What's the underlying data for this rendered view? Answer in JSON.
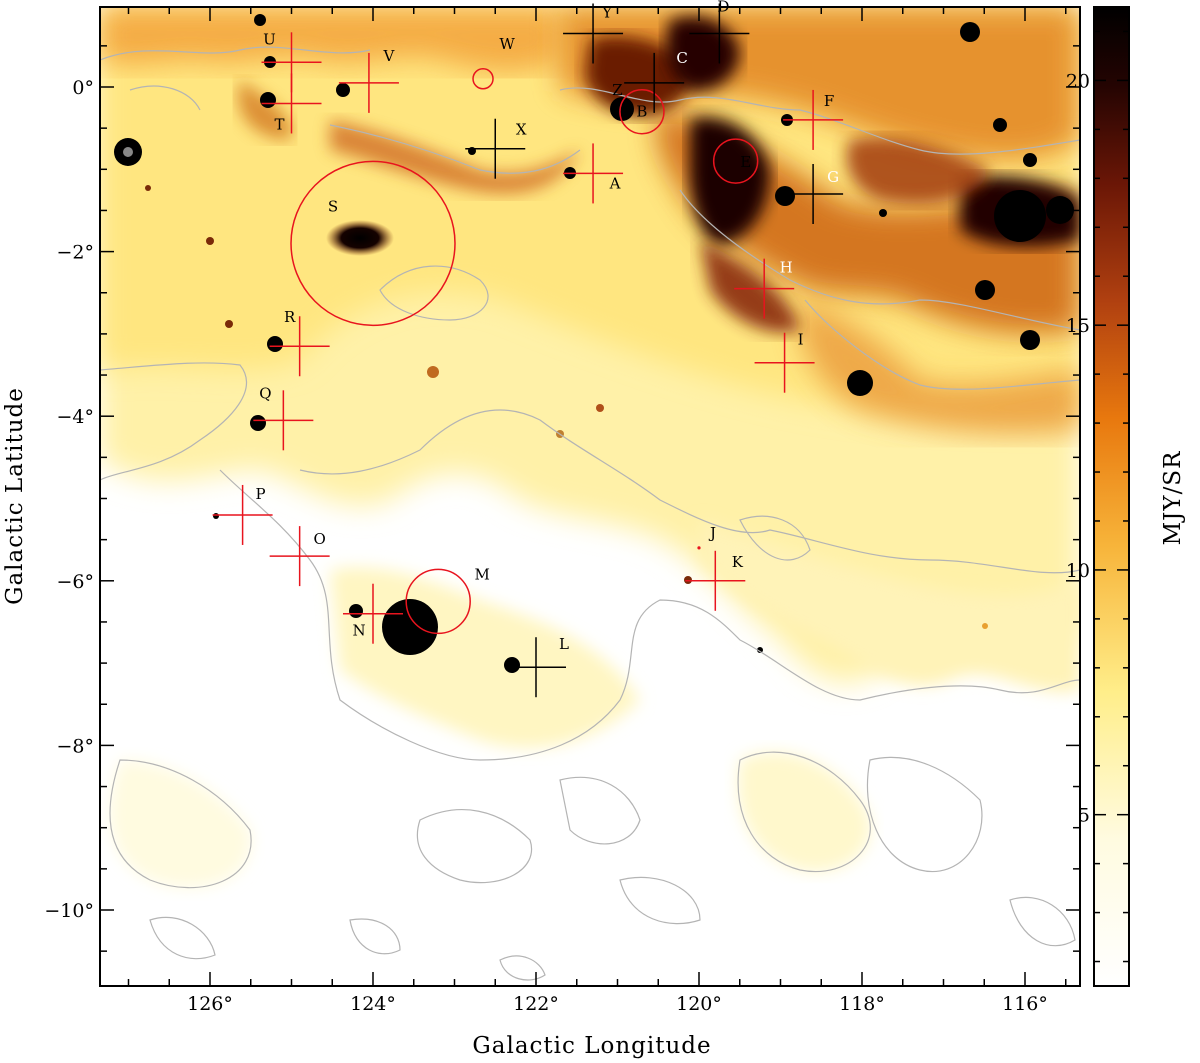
{
  "map": {
    "x_axis_title": "Galactic Longitude",
    "y_axis_title": "Galactic Latitude",
    "colorbar_title": "MJY/SR",
    "x_ticks": [
      {
        "value": 126,
        "label": "126°"
      },
      {
        "value": 124,
        "label": "124°"
      },
      {
        "value": 122,
        "label": "122°"
      },
      {
        "value": 120,
        "label": "120°"
      },
      {
        "value": 118,
        "label": "118°"
      },
      {
        "value": 116,
        "label": "116°"
      }
    ],
    "y_ticks": [
      {
        "value": 0,
        "label": "0°"
      },
      {
        "value": -2,
        "label": "−2°"
      },
      {
        "value": -4,
        "label": "−4°"
      },
      {
        "value": -6,
        "label": "−6°"
      },
      {
        "value": -8,
        "label": "−8°"
      },
      {
        "value": -10,
        "label": "−10°"
      }
    ],
    "colorbar_ticks": [
      {
        "value": 20,
        "label": "20"
      },
      {
        "value": 15,
        "label": "15"
      },
      {
        "value": 10,
        "label": "10"
      },
      {
        "value": 5,
        "label": "5"
      }
    ],
    "colors": {
      "low": "#ffffff",
      "mid_low": "#fff3b0",
      "mid": "#f4a028",
      "mid_high": "#8a2a08",
      "high": "#000000",
      "contour": "#b4b4b4",
      "marker_red": "#e8141e",
      "marker_black": "#000000"
    },
    "sources": [
      {
        "id": "A",
        "l": 121.3,
        "b": -1.05,
        "marker": "cross",
        "color": "red"
      },
      {
        "id": "B",
        "l": 120.7,
        "b": -0.3,
        "marker": "circle",
        "color": "red"
      },
      {
        "id": "C",
        "l": 120.55,
        "b": 0.05,
        "marker": "cross",
        "color": "black"
      },
      {
        "id": "D",
        "l": 119.75,
        "b": 0.65,
        "marker": "cross",
        "color": "black"
      },
      {
        "id": "E",
        "l": 119.55,
        "b": -0.9,
        "marker": "circle",
        "color": "red"
      },
      {
        "id": "F",
        "l": 118.6,
        "b": -0.4,
        "marker": "cross",
        "color": "red"
      },
      {
        "id": "G",
        "l": 118.6,
        "b": -1.3,
        "marker": "cross",
        "color": "black"
      },
      {
        "id": "H",
        "l": 119.2,
        "b": -2.45,
        "marker": "cross",
        "color": "red"
      },
      {
        "id": "I",
        "l": 118.95,
        "b": -3.35,
        "marker": "cross",
        "color": "red"
      },
      {
        "id": "J",
        "l": 120.0,
        "b": -5.6,
        "marker": "dot",
        "color": "red"
      },
      {
        "id": "K",
        "l": 119.8,
        "b": -6.0,
        "marker": "cross",
        "color": "red"
      },
      {
        "id": "L",
        "l": 122.0,
        "b": -7.05,
        "marker": "cross",
        "color": "black"
      },
      {
        "id": "M",
        "l": 123.2,
        "b": -6.25,
        "marker": "circle",
        "color": "red"
      },
      {
        "id": "N",
        "l": 124.0,
        "b": -6.4,
        "marker": "cross",
        "color": "red"
      },
      {
        "id": "O",
        "l": 124.9,
        "b": -5.7,
        "marker": "cross",
        "color": "red"
      },
      {
        "id": "P",
        "l": 125.6,
        "b": -5.2,
        "marker": "cross",
        "color": "red"
      },
      {
        "id": "Q",
        "l": 125.1,
        "b": -4.05,
        "marker": "cross",
        "color": "red"
      },
      {
        "id": "R",
        "l": 124.9,
        "b": -3.15,
        "marker": "cross",
        "color": "red"
      },
      {
        "id": "S",
        "l": 124.0,
        "b": -1.9,
        "marker": "bigcircle",
        "color": "red"
      },
      {
        "id": "T",
        "l": 125.0,
        "b": -0.2,
        "marker": "cross",
        "color": "red"
      },
      {
        "id": "U",
        "l": 125.0,
        "b": 0.3,
        "marker": "cross",
        "color": "red"
      },
      {
        "id": "V",
        "l": 124.05,
        "b": 0.05,
        "marker": "cross",
        "color": "red"
      },
      {
        "id": "W",
        "l": 122.65,
        "b": 0.1,
        "marker": "circle",
        "color": "red"
      },
      {
        "id": "X",
        "l": 122.5,
        "b": -0.75,
        "marker": "cross",
        "color": "black"
      },
      {
        "id": "Y",
        "l": 121.3,
        "b": 0.65,
        "marker": "cross",
        "color": "black"
      },
      {
        "id": "Z",
        "l": 121.0,
        "b": -0.1,
        "marker": "none",
        "color": "black"
      }
    ]
  }
}
